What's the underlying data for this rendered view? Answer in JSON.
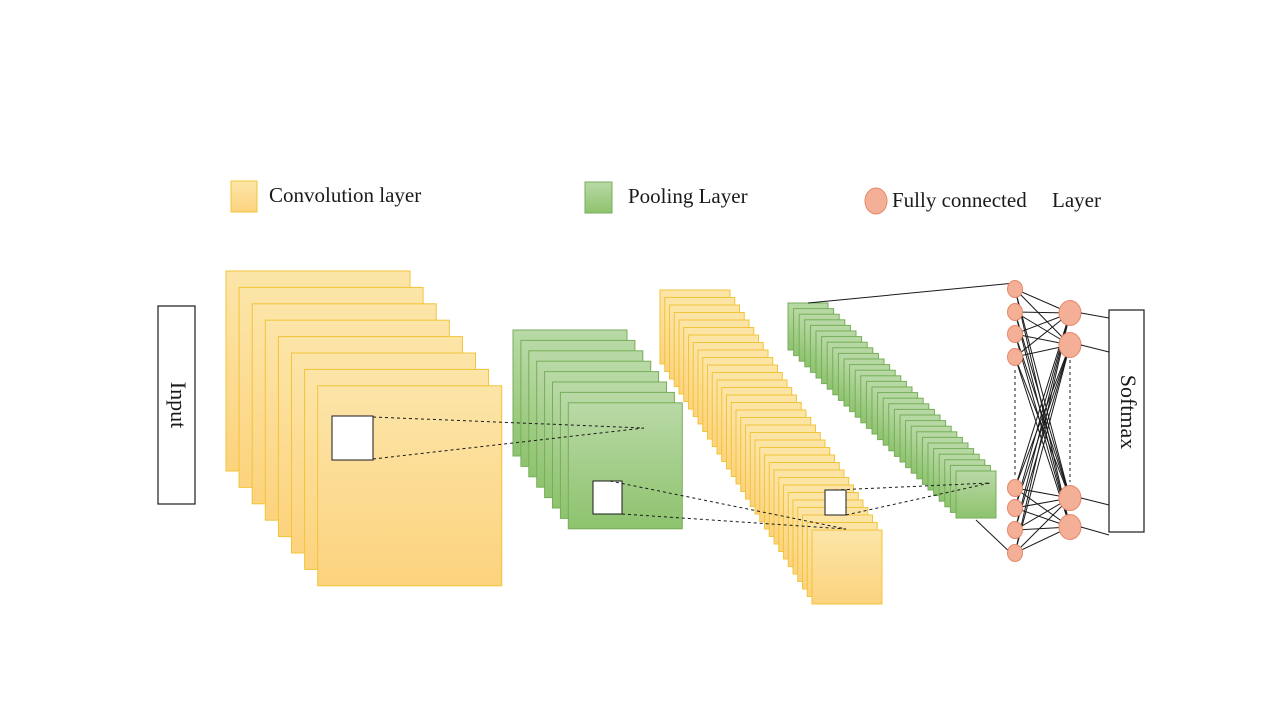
{
  "legend": {
    "convolution_label": "Convolution layer",
    "pooling_label": "Pooling Layer",
    "fc_label_a": "Fully connected",
    "fc_label_b": "Layer"
  },
  "input_label": "Input",
  "softmax_label": "Softmax",
  "colors": {
    "convolution_top": "#FCE5A8",
    "convolution_bottom": "#FCD37E",
    "convolution_stroke": "#F2C438",
    "pooling_top": "#B9D9A6",
    "pooling_bottom": "#8EC36E",
    "pooling_stroke": "#77AE59",
    "neuron_fill": "#F4B096",
    "neuron_stroke": "#E7876A",
    "line": "#1a1a1a"
  },
  "icons": {
    "convolution": "yellow-square-icon",
    "pooling": "green-square-icon",
    "fully_connected": "orange-circle-icon"
  }
}
